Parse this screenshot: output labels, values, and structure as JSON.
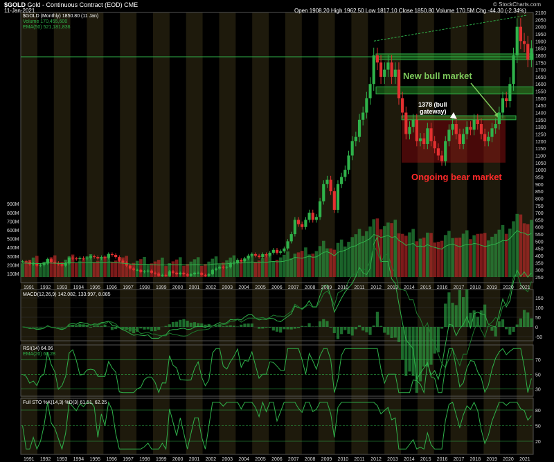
{
  "header": {
    "symbol": "$GOLD",
    "title": "Gold - Continuous Contract (EOD)",
    "exchange": "CME",
    "date": "11-Jan-2021",
    "ohlc": "Open 1908.20  High 1962.50  Low 1817.10  Close 1850.80  Volume 170.5M  Chg -44.30 (-2.34%)",
    "watermark": "© StockCharts.com"
  },
  "legends": {
    "price": "$GOLD (Monthly) 1850.80 (11 Jan)",
    "volume": "Volume 170,455,600",
    "ema": "EMA(50) 521,181,836",
    "macd": "MACD(12,26,9) 142.082, 133.997, 8.085",
    "rsi": "RSI(14) 64.06",
    "rsi_ema": "EMA(20) 68.28",
    "sto": "Full STO %K(14,3) %D(3) 61.51, 62.25"
  },
  "annotations": {
    "bull": "New bull market",
    "gateway_1": "1378 (bull",
    "gateway_2": "gateway)",
    "bear": "Ongoing bear market"
  },
  "chart_data": {
    "type": "candlestick",
    "x_years": [
      "1991",
      "1992",
      "1993",
      "1994",
      "1995",
      "1996",
      "1997",
      "1998",
      "1999",
      "2000",
      "2001",
      "2002",
      "2003",
      "2004",
      "2005",
      "2006",
      "2007",
      "2008",
      "2009",
      "2010",
      "2011",
      "2012",
      "2013",
      "2014",
      "2015",
      "2016",
      "2017",
      "2018",
      "2019",
      "2020",
      "2021"
    ],
    "price_ticks": [
      250,
      300,
      350,
      400,
      450,
      500,
      550,
      600,
      650,
      700,
      750,
      800,
      850,
      900,
      950,
      1000,
      1050,
      1100,
      1150,
      1200,
      1250,
      1300,
      1350,
      1400,
      1450,
      1500,
      1550,
      1600,
      1650,
      1700,
      1750,
      1800,
      1850,
      1900,
      1950,
      2000,
      2050,
      2100
    ],
    "volume_ticks": [
      "100M",
      "200M",
      "300M",
      "400M",
      "500M",
      "600M",
      "700M",
      "800M",
      "900M"
    ],
    "price_close": [
      360,
      355,
      340,
      345,
      330,
      335,
      345,
      375,
      355,
      350,
      340,
      330,
      345,
      385,
      380,
      375,
      383,
      380,
      385,
      395,
      390,
      380,
      390,
      385,
      410,
      405,
      390,
      365,
      350,
      330,
      310,
      300,
      300,
      285,
      290,
      295,
      280,
      275,
      260,
      265,
      260,
      290,
      280,
      270,
      280,
      270,
      260,
      270,
      280,
      280,
      265,
      260,
      270,
      300,
      310,
      320,
      315,
      320,
      345,
      350,
      370,
      360,
      380,
      400,
      410,
      400,
      390,
      410,
      400,
      420,
      440,
      420,
      430,
      450,
      500,
      550,
      650,
      620,
      600,
      650,
      700,
      650,
      670,
      780,
      900,
      930,
      850,
      720,
      900,
      950,
      1000,
      1100,
      1200,
      1230,
      1350,
      1400,
      1500,
      1600,
      1800,
      1750,
      1650,
      1700,
      1750,
      1650,
      1700,
      1500,
      1400,
      1250,
      1300,
      1350,
      1200,
      1220,
      1180,
      1290,
      1200,
      1150,
      1100,
      1060,
      1200,
      1280,
      1320,
      1250,
      1180,
      1250,
      1300,
      1280,
      1350,
      1320,
      1250,
      1200,
      1230,
      1290,
      1320,
      1400,
      1500,
      1480,
      1600,
      1800,
      2000,
      1900,
      1880,
      1770,
      1850
    ],
    "price_annotation_levels": {
      "gateway": 1378,
      "upper_zone": [
        1780,
        1800
      ],
      "mid_zone": [
        1530,
        1580
      ],
      "gateway_zone": [
        1350,
        1378
      ],
      "bear_box": [
        1050,
        1378
      ]
    },
    "macd_ticks": [
      150,
      100,
      50,
      0,
      -50
    ],
    "rsi_ticks": [
      70,
      50,
      30
    ],
    "sto_ticks": [
      80,
      50,
      20
    ],
    "latest": {
      "price": 1850.8,
      "macd": 142.082,
      "signal": 133.997,
      "histogram": 8.085,
      "rsi": 64.06,
      "rsi_ema": 68.28,
      "sto_k": 61.51,
      "sto_d": 62.25
    }
  }
}
